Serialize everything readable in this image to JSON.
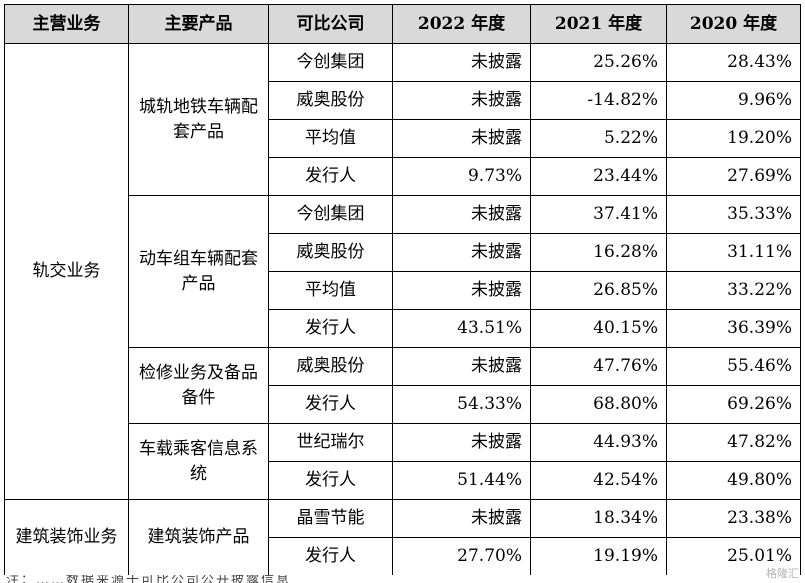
{
  "table": {
    "headers": [
      "主营业务",
      "主要产品",
      "可比公司",
      "2022 年度",
      "2021 年度",
      "2020 年度"
    ],
    "segments": [
      {
        "name": "轨交业务",
        "products": [
          {
            "name": "城轨地铁车辆配套产品",
            "rows": [
              {
                "company": "今创集团",
                "y2022": "未披露",
                "y2021": "25.26%",
                "y2020": "28.43%"
              },
              {
                "company": "威奥股份",
                "y2022": "未披露",
                "y2021": "-14.82%",
                "y2020": "9.96%"
              },
              {
                "company": "平均值",
                "y2022": "未披露",
                "y2021": "5.22%",
                "y2020": "19.20%"
              },
              {
                "company": "发行人",
                "y2022": "9.73%",
                "y2021": "23.44%",
                "y2020": "27.69%"
              }
            ]
          },
          {
            "name": "动车组车辆配套产品",
            "rows": [
              {
                "company": "今创集团",
                "y2022": "未披露",
                "y2021": "37.41%",
                "y2020": "35.33%"
              },
              {
                "company": "威奥股份",
                "y2022": "未披露",
                "y2021": "16.28%",
                "y2020": "31.11%"
              },
              {
                "company": "平均值",
                "y2022": "未披露",
                "y2021": "26.85%",
                "y2020": "33.22%"
              },
              {
                "company": "发行人",
                "y2022": "43.51%",
                "y2021": "40.15%",
                "y2020": "36.39%"
              }
            ]
          },
          {
            "name": "检修业务及备品备件",
            "rows": [
              {
                "company": "威奥股份",
                "y2022": "未披露",
                "y2021": "47.76%",
                "y2020": "55.46%"
              },
              {
                "company": "发行人",
                "y2022": "54.33%",
                "y2021": "68.80%",
                "y2020": "69.26%"
              }
            ]
          },
          {
            "name": "车载乘客信息系统",
            "rows": [
              {
                "company": "世纪瑞尔",
                "y2022": "未披露",
                "y2021": "44.93%",
                "y2020": "47.82%"
              },
              {
                "company": "发行人",
                "y2022": "51.44%",
                "y2021": "42.54%",
                "y2020": "49.80%"
              }
            ]
          }
        ]
      },
      {
        "name": "建筑装饰业务",
        "products": [
          {
            "name": "建筑装饰产品",
            "rows": [
              {
                "company": "晶雪节能",
                "y2022": "未披露",
                "y2021": "18.34%",
                "y2020": "23.38%"
              },
              {
                "company": "发行人",
                "y2022": "27.70%",
                "y2021": "19.19%",
                "y2020": "25.01%"
              }
            ]
          }
        ]
      }
    ]
  },
  "footer": {
    "cut_text": "注：……数据来源于可比公司公开披露信息"
  },
  "watermark": "格隆汇"
}
